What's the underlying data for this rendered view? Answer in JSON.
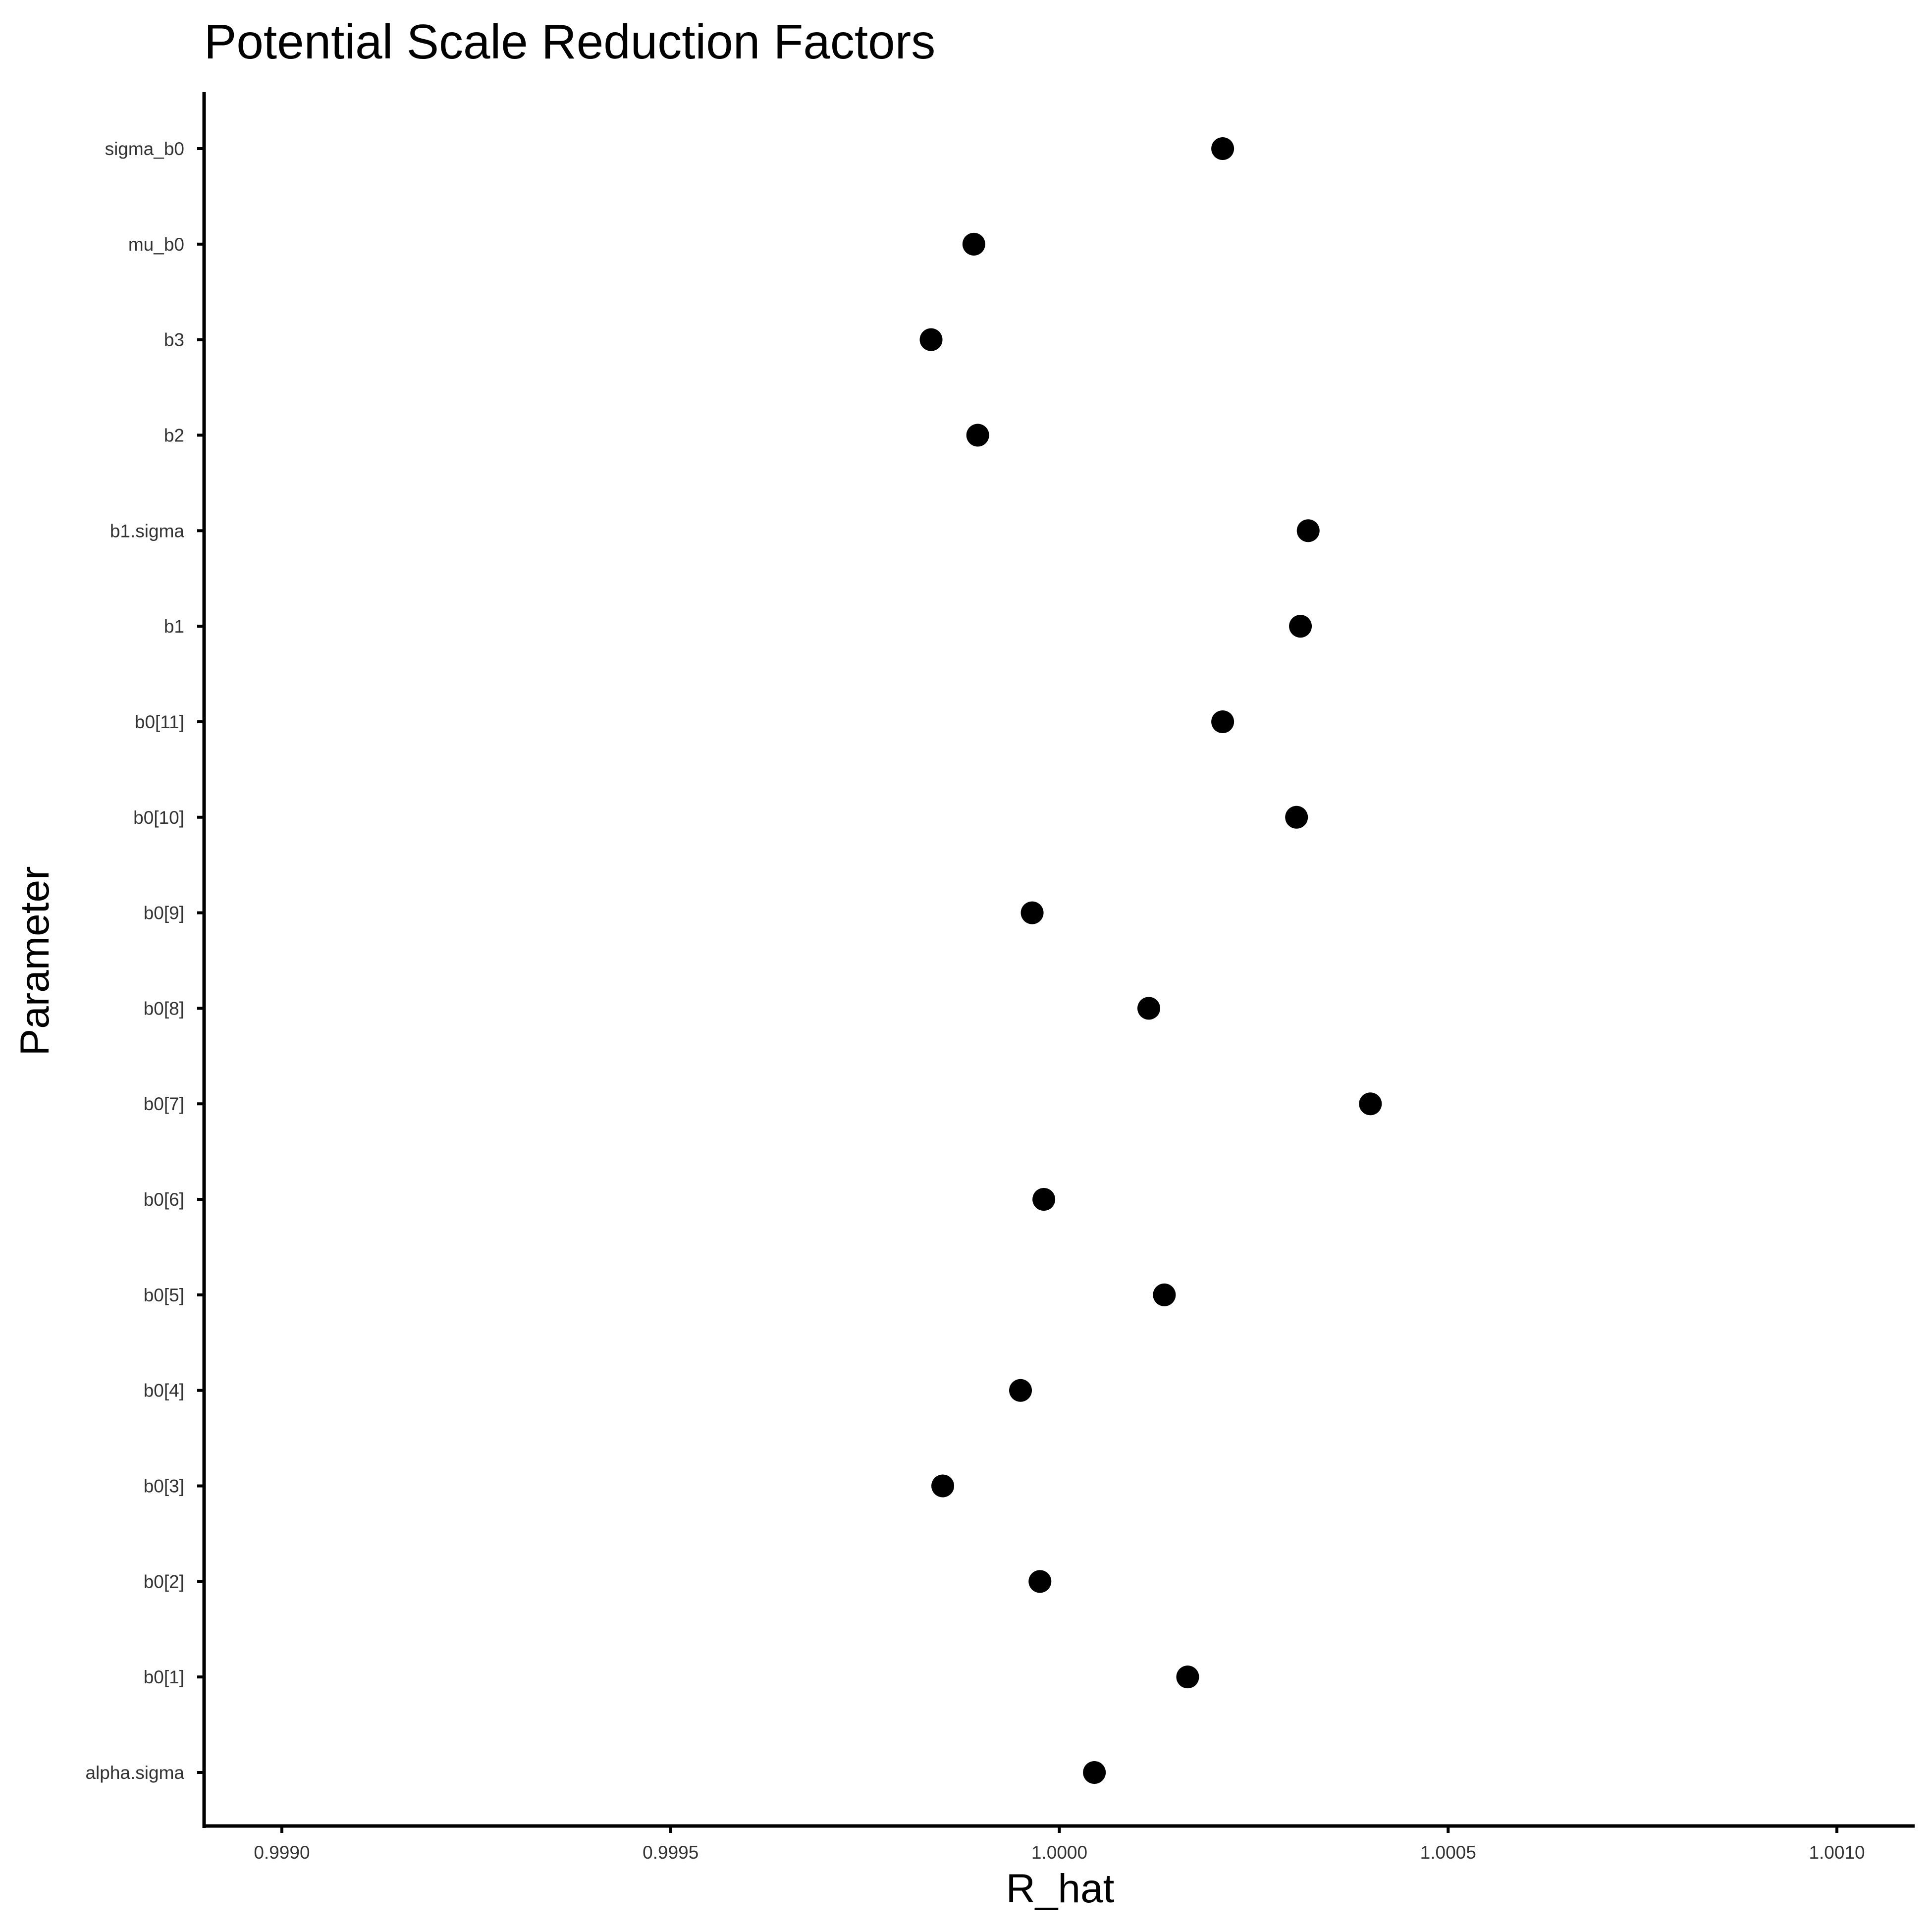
{
  "chart_data": {
    "type": "scatter",
    "title": "Potential Scale Reduction Factors",
    "xlabel": "R_hat",
    "ylabel": "Parameter",
    "xlim": [
      0.9989,
      1.0011
    ],
    "xticks": [
      0.999,
      0.9995,
      1.0,
      1.0005,
      1.001
    ],
    "xtick_labels": [
      "0.9990",
      "0.9995",
      "1.0000",
      "1.0005",
      "1.0010"
    ],
    "categories": [
      "alpha.sigma",
      "b0[1]",
      "b0[2]",
      "b0[3]",
      "b0[4]",
      "b0[5]",
      "b0[6]",
      "b0[7]",
      "b0[8]",
      "b0[9]",
      "b0[10]",
      "b0[11]",
      "b1",
      "b1.sigma",
      "b2",
      "b3",
      "mu_b0",
      "sigma_b0"
    ],
    "values": [
      1.000045,
      1.000165,
      0.999975,
      0.99985,
      0.99995,
      1.000135,
      0.99998,
      1.0004,
      1.000115,
      0.999965,
      1.000305,
      1.00021,
      1.00031,
      1.00032,
      0.999895,
      0.999835,
      0.99989,
      1.00021
    ],
    "point_color": "#000000",
    "grid": false,
    "legend": "none"
  }
}
